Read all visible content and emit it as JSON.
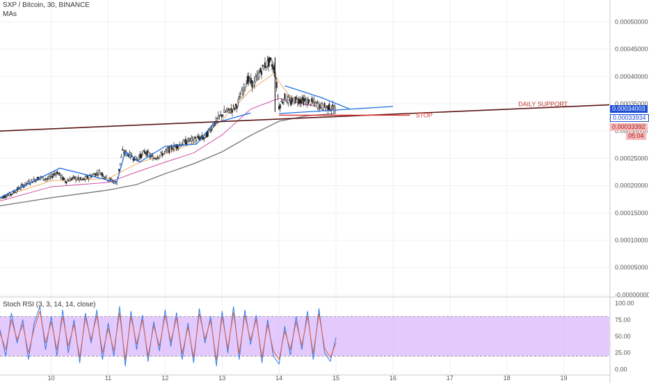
{
  "header": {
    "symbol_line": "SXP / Bitcoin, 30, BINANCE",
    "ma_label": "MAs",
    "osc_label": "Stoch RSI (3, 3, 14, 14, close)"
  },
  "price_tags": {
    "last_price": "0.00034003",
    "second_price": "0.00033934",
    "third_price": "0.00033392",
    "countdown": "05:04"
  },
  "colors": {
    "candle": "#222222",
    "pattern": "#1e6fe0",
    "support": "#5a1414",
    "stop": "#e03131",
    "rsi_k": "#2f7bea",
    "rsi_d": "#e8603c",
    "rsi_band": "#d9b7fb",
    "ma_fast": "#f0a050",
    "ma_mid": "#cc3c9a",
    "ma_slow": "#6e6e6e",
    "tag_blue": "#1e4fd6",
    "tag_red": "#f6b9b9"
  },
  "chart_data": [
    {
      "type": "line",
      "name": "price",
      "x_ticks": [
        "10",
        "11",
        "12",
        "13",
        "14",
        "15",
        "16",
        "17",
        "18",
        "19"
      ],
      "y_ticks": [
        "0.00050000",
        "0.00045000",
        "0.00040000",
        "0.00035000",
        "0.00030000",
        "0.00025000",
        "0.00020000",
        "0.00015000",
        "0.00010000",
        "0.00005000",
        "-0.00000000"
      ],
      "ylim": [
        -2e-06,
        0.00054
      ],
      "xlim": [
        9.1,
        19.8
      ],
      "close": [
        [
          9.1,
          0.000178
        ],
        [
          9.3,
          0.000185
        ],
        [
          9.5,
          0.0002
        ],
        [
          9.65,
          0.000208
        ],
        [
          9.8,
          0.000215
        ],
        [
          9.95,
          0.000212
        ],
        [
          10.1,
          0.000225
        ],
        [
          10.25,
          0.000208
        ],
        [
          10.4,
          0.000214
        ],
        [
          10.55,
          0.00021
        ],
        [
          10.7,
          0.000218
        ],
        [
          10.85,
          0.000225
        ],
        [
          11.0,
          0.000212
        ],
        [
          11.15,
          0.000205
        ],
        [
          11.25,
          0.000262
        ],
        [
          11.35,
          0.000258
        ],
        [
          11.5,
          0.000248
        ],
        [
          11.65,
          0.000262
        ],
        [
          11.8,
          0.00025
        ],
        [
          11.95,
          0.000258
        ],
        [
          12.1,
          0.000268
        ],
        [
          12.25,
          0.000275
        ],
        [
          12.4,
          0.000282
        ],
        [
          12.55,
          0.000286
        ],
        [
          12.7,
          0.000288
        ],
        [
          12.85,
          0.000312
        ],
        [
          12.95,
          0.000325
        ],
        [
          13.05,
          0.000335
        ],
        [
          13.15,
          0.000338
        ],
        [
          13.25,
          0.000345
        ],
        [
          13.35,
          0.00037
        ],
        [
          13.45,
          0.000395
        ],
        [
          13.55,
          0.000385
        ],
        [
          13.65,
          0.000405
        ],
        [
          13.75,
          0.00042
        ],
        [
          13.85,
          0.000428
        ],
        [
          13.93,
          0.00041
        ],
        [
          14.0,
          0.000345
        ],
        [
          14.1,
          0.000362
        ],
        [
          14.2,
          0.000352
        ],
        [
          14.3,
          0.000358
        ],
        [
          14.45,
          0.000355
        ],
        [
          14.6,
          0.000352
        ],
        [
          14.75,
          0.000345
        ],
        [
          14.9,
          0.000343
        ],
        [
          15.0,
          0.00034
        ]
      ],
      "series": [
        {
          "name": "ma_fast",
          "values": [
            [
              9.1,
              0.000178
            ],
            [
              10.0,
              0.000209
            ],
            [
              11.0,
              0.000213
            ],
            [
              11.5,
              0.00024
            ],
            [
              12.0,
              0.000258
            ],
            [
              12.5,
              0.000278
            ],
            [
              13.0,
              0.00032
            ],
            [
              13.5,
              0.000375
            ],
            [
              13.9,
              0.000405
            ],
            [
              14.2,
              0.000362
            ],
            [
              14.6,
              0.000352
            ],
            [
              15.0,
              0.000342
            ]
          ]
        },
        {
          "name": "ma_mid",
          "values": [
            [
              9.1,
              0.000172
            ],
            [
              10.0,
              0.000198
            ],
            [
              11.0,
              0.000206
            ],
            [
              11.5,
              0.000225
            ],
            [
              12.0,
              0.000243
            ],
            [
              12.5,
              0.00026
            ],
            [
              13.0,
              0.000293
            ],
            [
              13.5,
              0.00034
            ],
            [
              14.0,
              0.00036
            ],
            [
              14.5,
              0.000348
            ],
            [
              15.0,
              0.00034
            ]
          ]
        },
        {
          "name": "ma_slow",
          "values": [
            [
              9.1,
              0.000163
            ],
            [
              10.0,
              0.000178
            ],
            [
              11.0,
              0.000192
            ],
            [
              11.5,
              0.000202
            ],
            [
              12.0,
              0.000222
            ],
            [
              12.5,
              0.00024
            ],
            [
              13.0,
              0.000262
            ],
            [
              13.5,
              0.000292
            ],
            [
              14.0,
              0.000318
            ],
            [
              14.5,
              0.000328
            ],
            [
              15.0,
              0.000332
            ]
          ]
        }
      ],
      "annotations": [
        {
          "label": "DAILY SUPPORT",
          "type": "trendline",
          "from": [
            9.1,
            0.0003
          ],
          "to": [
            19.8,
            0.000348
          ]
        },
        {
          "label": "STOP",
          "type": "horizontal",
          "from": [
            14.0,
            0.000329
          ],
          "to": [
            16.3,
            0.000329
          ]
        }
      ],
      "pattern_lines": [
        [
          [
            9.1,
            0.000178
          ],
          [
            10.15,
            0.000232
          ],
          [
            11.15,
            0.000206
          ],
          [
            11.3,
            0.000262
          ],
          [
            11.55,
            0.000243
          ],
          [
            12.0,
            0.000272
          ],
          [
            12.55,
            0.000276
          ],
          [
            12.85,
            0.000314
          ],
          [
            13.5,
            0.000333
          ]
        ],
        [
          [
            14.1,
            0.000383
          ],
          [
            14.75,
            0.000361
          ],
          [
            15.25,
            0.00034
          ]
        ],
        [
          [
            14.0,
            0.000332
          ],
          [
            16.0,
            0.000345
          ]
        ]
      ]
    },
    {
      "type": "line",
      "name": "stoch_rsi",
      "y_ticks": [
        "100.00",
        "75.00",
        "50.00",
        "25.00",
        "0.00"
      ],
      "ylim": [
        -8,
        108
      ],
      "band": [
        20,
        80
      ],
      "series": [
        {
          "name": "k",
          "values": [
            [
              9.1,
              60
            ],
            [
              9.2,
              20
            ],
            [
              9.3,
              85
            ],
            [
              9.4,
              40
            ],
            [
              9.5,
              75
            ],
            [
              9.6,
              15
            ],
            [
              9.7,
              70
            ],
            [
              9.8,
              95
            ],
            [
              9.9,
              30
            ],
            [
              10.0,
              80
            ],
            [
              10.1,
              20
            ],
            [
              10.2,
              90
            ],
            [
              10.3,
              25
            ],
            [
              10.4,
              75
            ],
            [
              10.5,
              10
            ],
            [
              10.6,
              85
            ],
            [
              10.7,
              40
            ],
            [
              10.8,
              90
            ],
            [
              10.9,
              15
            ],
            [
              11.0,
              70
            ],
            [
              11.1,
              20
            ],
            [
              11.2,
              95
            ],
            [
              11.3,
              5
            ],
            [
              11.4,
              88
            ],
            [
              11.5,
              30
            ],
            [
              11.6,
              82
            ],
            [
              11.7,
              12
            ],
            [
              11.8,
              72
            ],
            [
              11.9,
              28
            ],
            [
              12.0,
              90
            ],
            [
              12.1,
              35
            ],
            [
              12.2,
              86
            ],
            [
              12.3,
              15
            ],
            [
              12.4,
              70
            ],
            [
              12.5,
              10
            ],
            [
              12.6,
              92
            ],
            [
              12.7,
              40
            ],
            [
              12.8,
              80
            ],
            [
              12.9,
              5
            ],
            [
              13.0,
              88
            ],
            [
              13.1,
              25
            ],
            [
              13.2,
              95
            ],
            [
              13.3,
              15
            ],
            [
              13.4,
              90
            ],
            [
              13.5,
              38
            ],
            [
              13.6,
              82
            ],
            [
              13.7,
              10
            ],
            [
              13.8,
              75
            ],
            [
              13.9,
              20
            ],
            [
              14.0,
              8
            ],
            [
              14.1,
              65
            ],
            [
              14.2,
              22
            ],
            [
              14.3,
              80
            ],
            [
              14.4,
              30
            ],
            [
              14.5,
              88
            ],
            [
              14.6,
              15
            ],
            [
              14.7,
              92
            ],
            [
              14.8,
              25
            ],
            [
              14.9,
              12
            ],
            [
              15.0,
              48
            ]
          ]
        },
        {
          "name": "d",
          "values": [
            [
              9.1,
              55
            ],
            [
              9.2,
              30
            ],
            [
              9.3,
              75
            ],
            [
              9.4,
              45
            ],
            [
              9.5,
              68
            ],
            [
              9.6,
              25
            ],
            [
              9.7,
              62
            ],
            [
              9.8,
              88
            ],
            [
              9.9,
              40
            ],
            [
              10.0,
              72
            ],
            [
              10.1,
              30
            ],
            [
              10.2,
              80
            ],
            [
              10.3,
              35
            ],
            [
              10.4,
              68
            ],
            [
              10.5,
              18
            ],
            [
              10.6,
              78
            ],
            [
              10.7,
              45
            ],
            [
              10.8,
              82
            ],
            [
              10.9,
              25
            ],
            [
              11.0,
              62
            ],
            [
              11.1,
              28
            ],
            [
              11.2,
              85
            ],
            [
              11.3,
              14
            ],
            [
              11.4,
              80
            ],
            [
              11.5,
              38
            ],
            [
              11.6,
              75
            ],
            [
              11.7,
              20
            ],
            [
              11.8,
              66
            ],
            [
              11.9,
              35
            ],
            [
              12.0,
              82
            ],
            [
              12.1,
              42
            ],
            [
              12.2,
              78
            ],
            [
              12.3,
              24
            ],
            [
              12.4,
              64
            ],
            [
              12.5,
              18
            ],
            [
              12.6,
              84
            ],
            [
              12.7,
              46
            ],
            [
              12.8,
              74
            ],
            [
              12.9,
              14
            ],
            [
              13.0,
              80
            ],
            [
              13.1,
              32
            ],
            [
              13.2,
              86
            ],
            [
              13.3,
              24
            ],
            [
              13.4,
              82
            ],
            [
              13.5,
              44
            ],
            [
              13.6,
              76
            ],
            [
              13.7,
              18
            ],
            [
              13.8,
              68
            ],
            [
              13.9,
              28
            ],
            [
              14.0,
              15
            ],
            [
              14.1,
              58
            ],
            [
              14.2,
              30
            ],
            [
              14.3,
              72
            ],
            [
              14.4,
              36
            ],
            [
              14.5,
              80
            ],
            [
              14.6,
              24
            ],
            [
              14.7,
              84
            ],
            [
              14.8,
              32
            ],
            [
              14.9,
              18
            ],
            [
              15.0,
              40
            ]
          ]
        }
      ]
    }
  ]
}
